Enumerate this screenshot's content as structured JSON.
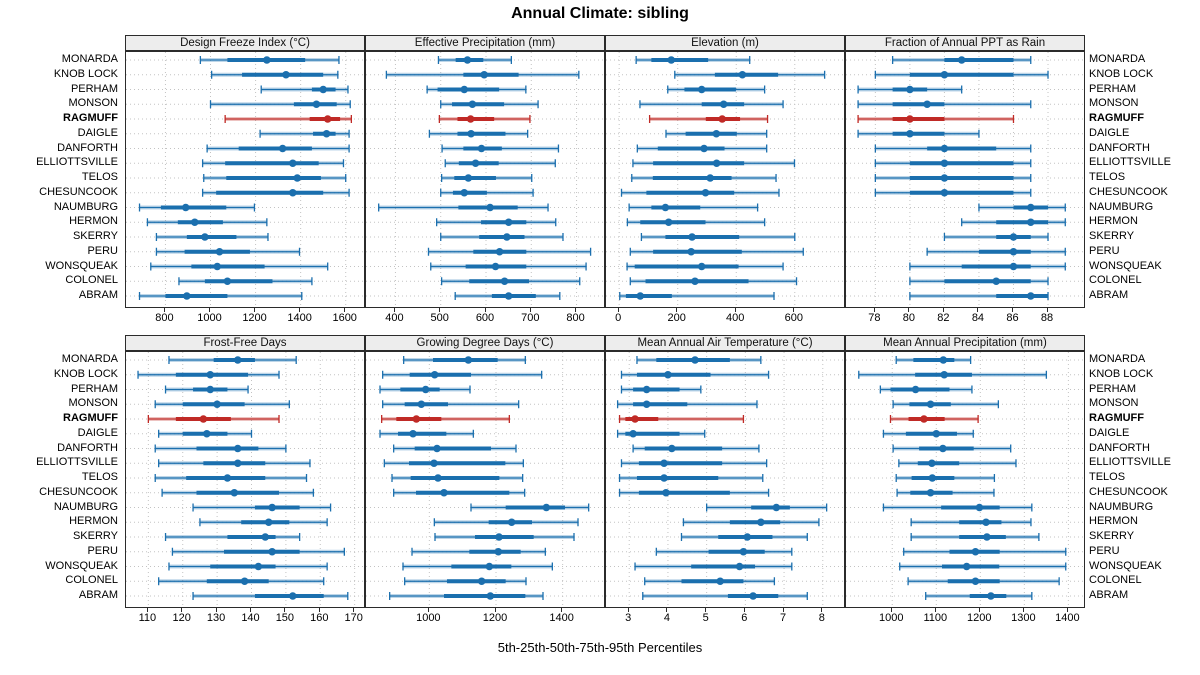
{
  "chart_data": {
    "type": "dotplot-percentiles",
    "title": "Annual Climate: sibling",
    "footer": "5th-25th-50th-75th-95th Percentiles",
    "percentiles": [
      5,
      25,
      50,
      75,
      95
    ],
    "legend_position": "none",
    "grid": true,
    "sites": [
      "MONARDA",
      "KNOB LOCK",
      "PERHAM",
      "MONSON",
      "RAGMUFF",
      "DAIGLE",
      "DANFORTH",
      "ELLIOTTSVILLE",
      "TELOS",
      "CHESUNCOOK",
      "NAUMBURG",
      "HERMON",
      "SKERRY",
      "PERU",
      "WONSQUEAK",
      "COLONEL",
      "ABRAM"
    ],
    "highlight_site": "RAGMUFF",
    "colors": {
      "series": "#1b6fae",
      "highlight": "#c02a26",
      "grid": "#c3c3c3",
      "header_bg": "#ededed",
      "border": "#2b2b2b"
    },
    "panels": [
      {
        "title": "Design Freeze Index (°C)",
        "row": 0,
        "col": 0,
        "xlim": [
          625,
          1690
        ],
        "ticks": [
          800,
          1000,
          1200,
          1400,
          1600
        ],
        "values": {
          "MONARDA": [
            955,
            1075,
            1250,
            1420,
            1570
          ],
          "KNOB LOCK": [
            1005,
            1140,
            1335,
            1500,
            1565
          ],
          "PERHAM": [
            1225,
            1450,
            1500,
            1555,
            1610
          ],
          "MONSON": [
            1000,
            1370,
            1470,
            1560,
            1620
          ],
          "RAGMUFF": [
            1065,
            1440,
            1520,
            1575,
            1625
          ],
          "DAIGLE": [
            1220,
            1455,
            1515,
            1555,
            1615
          ],
          "DANFORTH": [
            985,
            1125,
            1320,
            1450,
            1615
          ],
          "ELLIOTTSVILLE": [
            965,
            1065,
            1365,
            1480,
            1590
          ],
          "TELOS": [
            970,
            1070,
            1385,
            1490,
            1600
          ],
          "CHESUNCOOK": [
            965,
            1025,
            1365,
            1500,
            1615
          ],
          "NAUMBURG": [
            685,
            780,
            890,
            1070,
            1195
          ],
          "HERMON": [
            720,
            855,
            930,
            1055,
            1250
          ],
          "SKERRY": [
            760,
            895,
            975,
            1115,
            1255
          ],
          "PERU": [
            760,
            885,
            1040,
            1175,
            1395
          ],
          "WONSQUEAK": [
            735,
            915,
            1030,
            1240,
            1520
          ],
          "COLONEL": [
            860,
            975,
            1075,
            1275,
            1450
          ],
          "ABRAM": [
            685,
            800,
            895,
            1075,
            1405
          ]
        }
      },
      {
        "title": "Effective Precipitation (mm)",
        "row": 0,
        "col": 1,
        "xlim": [
          335,
          865
        ],
        "ticks": [
          400,
          500,
          600,
          700,
          800
        ],
        "values": {
          "MONARDA": [
            495,
            533,
            559,
            594,
            656
          ],
          "KNOB LOCK": [
            380,
            550,
            596,
            672,
            805
          ],
          "PERHAM": [
            470,
            493,
            552,
            629,
            688
          ],
          "MONSON": [
            500,
            525,
            570,
            640,
            715
          ],
          "RAGMUFF": [
            497,
            537,
            566,
            618,
            697
          ],
          "DAIGLE": [
            475,
            537,
            567,
            643,
            692
          ],
          "DANFORTH": [
            503,
            550,
            590,
            635,
            760
          ],
          "ELLIOTTSVILLE": [
            510,
            540,
            577,
            628,
            753
          ],
          "TELOS": [
            502,
            530,
            561,
            622,
            701
          ],
          "CHESUNCOOK": [
            500,
            527,
            552,
            602,
            704
          ],
          "NAUMBURG": [
            363,
            539,
            609,
            670,
            737
          ],
          "HERMON": [
            491,
            589,
            650,
            689,
            754
          ],
          "SKERRY": [
            500,
            585,
            646,
            685,
            770
          ],
          "PERU": [
            473,
            572,
            630,
            689,
            831
          ],
          "WONSQUEAK": [
            478,
            555,
            621,
            689,
            821
          ],
          "COLONEL": [
            502,
            563,
            641,
            695,
            807
          ],
          "ABRAM": [
            532,
            613,
            650,
            710,
            763
          ]
        }
      },
      {
        "title": "Elevation (m)",
        "row": 0,
        "col": 2,
        "xlim": [
          -45,
          775
        ],
        "ticks": [
          0,
          200,
          400,
          600
        ],
        "values": {
          "MONARDA": [
            58,
            110,
            178,
            304,
            446
          ],
          "KNOB LOCK": [
            190,
            327,
            421,
            543,
            702
          ],
          "PERHAM": [
            166,
            223,
            282,
            399,
            497
          ],
          "MONSON": [
            71,
            282,
            357,
            427,
            560
          ],
          "RAGMUFF": [
            104,
            296,
            352,
            413,
            507
          ],
          "DAIGLE": [
            160,
            227,
            332,
            402,
            504
          ],
          "DANFORTH": [
            62,
            132,
            290,
            360,
            504
          ],
          "ELLIOTTSVILLE": [
            47,
            116,
            333,
            427,
            599
          ],
          "TELOS": [
            43,
            115,
            311,
            384,
            536
          ],
          "CHESUNCOOK": [
            8,
            93,
            295,
            393,
            546
          ],
          "NAUMBURG": [
            34,
            110,
            158,
            277,
            473
          ],
          "HERMON": [
            28,
            72,
            169,
            295,
            497
          ],
          "SKERRY": [
            76,
            158,
            249,
            410,
            600
          ],
          "PERU": [
            38,
            116,
            246,
            419,
            629
          ],
          "WONSQUEAK": [
            27,
            53,
            282,
            408,
            560
          ],
          "COLONEL": [
            38,
            90,
            259,
            442,
            606
          ],
          "ABRAM": [
            2,
            23,
            72,
            180,
            529
          ]
        }
      },
      {
        "title": "Fraction of Annual PPT as Rain",
        "row": 0,
        "col": 3,
        "xlim": [
          76.3,
          90.2
        ],
        "ticks": [
          78,
          80,
          82,
          84,
          86,
          88
        ],
        "values": {
          "MONARDA": [
            79,
            82,
            83,
            86,
            87
          ],
          "KNOB LOCK": [
            78,
            80,
            82,
            86,
            88
          ],
          "PERHAM": [
            77,
            79,
            80,
            81,
            83
          ],
          "MONSON": [
            77,
            79,
            81,
            82,
            87
          ],
          "RAGMUFF": [
            77,
            79,
            80,
            82,
            86
          ],
          "DAIGLE": [
            77,
            79,
            80,
            82,
            84
          ],
          "DANFORTH": [
            78,
            81,
            82,
            85,
            87
          ],
          "ELLIOTTSVILLE": [
            78,
            80,
            82,
            86,
            87
          ],
          "TELOS": [
            78,
            80,
            82,
            86,
            87
          ],
          "CHESUNCOOK": [
            78,
            80,
            82,
            86,
            87
          ],
          "NAUMBURG": [
            84,
            86,
            87,
            88,
            89
          ],
          "HERMON": [
            83,
            85,
            87,
            88,
            89
          ],
          "SKERRY": [
            82,
            85,
            86,
            87,
            88
          ],
          "PERU": [
            81,
            84,
            86,
            87,
            89
          ],
          "WONSQUEAK": [
            80,
            83,
            86,
            87,
            89
          ],
          "COLONEL": [
            80,
            82,
            85,
            87,
            88
          ],
          "ABRAM": [
            80,
            85,
            87,
            88,
            88
          ]
        }
      },
      {
        "title": "Frost-Free Days",
        "row": 1,
        "col": 0,
        "xlim": [
          103.5,
          173.3
        ],
        "ticks": [
          110,
          120,
          130,
          140,
          150,
          160,
          170
        ],
        "values": {
          "MONARDA": [
            116,
            129,
            136,
            141,
            153
          ],
          "KNOB LOCK": [
            107,
            118,
            128,
            139,
            148
          ],
          "PERHAM": [
            115,
            123,
            128,
            133,
            139
          ],
          "MONSON": [
            112,
            120,
            130,
            138,
            151
          ],
          "RAGMUFF": [
            110,
            118,
            126,
            134,
            148
          ],
          "DAIGLE": [
            113,
            120,
            127,
            133,
            140
          ],
          "DANFORTH": [
            112,
            124,
            136,
            142,
            150
          ],
          "ELLIOTTSVILLE": [
            113,
            126,
            136,
            144,
            157
          ],
          "TELOS": [
            112,
            121,
            133,
            144,
            156
          ],
          "CHESUNCOOK": [
            114,
            124,
            135,
            148,
            158
          ],
          "NAUMBURG": [
            123,
            141,
            146,
            154,
            163
          ],
          "HERMON": [
            125,
            137,
            145,
            151,
            162
          ],
          "SKERRY": [
            115,
            133,
            144,
            147,
            154
          ],
          "PERU": [
            117,
            132,
            146,
            154,
            167
          ],
          "WONSQUEAK": [
            116,
            128,
            142,
            147,
            162
          ],
          "COLONEL": [
            113,
            127,
            138,
            145,
            161
          ],
          "ABRAM": [
            123,
            141,
            152,
            161,
            168
          ]
        }
      },
      {
        "title": "Growing Degree Days (°C)",
        "row": 1,
        "col": 1,
        "xlim": [
          810,
          1530
        ],
        "ticks": [
          1000,
          1200,
          1400
        ],
        "values": {
          "MONARDA": [
            923,
            1011,
            1117,
            1205,
            1288
          ],
          "KNOB LOCK": [
            860,
            941,
            1016,
            1125,
            1337
          ],
          "PERHAM": [
            852,
            913,
            989,
            1031,
            1122
          ],
          "MONSON": [
            860,
            926,
            976,
            1056,
            1268
          ],
          "RAGMUFF": [
            857,
            901,
            961,
            1036,
            1240
          ],
          "DAIGLE": [
            852,
            906,
            951,
            1051,
            1132
          ],
          "DANFORTH": [
            893,
            956,
            1023,
            1185,
            1260
          ],
          "ELLIOTTSVILLE": [
            865,
            939,
            1014,
            1228,
            1282
          ],
          "TELOS": [
            888,
            944,
            1026,
            1210,
            1280
          ],
          "CHESUNCOOK": [
            893,
            960,
            1044,
            1240,
            1286
          ],
          "NAUMBURG": [
            1125,
            1229,
            1351,
            1407,
            1478
          ],
          "HERMON": [
            1015,
            1178,
            1247,
            1308,
            1446
          ],
          "SKERRY": [
            1017,
            1137,
            1209,
            1313,
            1434
          ],
          "PERU": [
            948,
            1120,
            1207,
            1274,
            1348
          ],
          "WONSQUEAK": [
            921,
            1066,
            1180,
            1246,
            1369
          ],
          "COLONEL": [
            926,
            1053,
            1157,
            1229,
            1290
          ],
          "ABRAM": [
            881,
            1044,
            1183,
            1288,
            1341
          ]
        }
      },
      {
        "title": "Mean Annual Air Temperature (°C)",
        "row": 1,
        "col": 2,
        "xlim": [
          2.4,
          8.6
        ],
        "ticks": [
          3,
          4,
          5,
          6,
          7,
          8
        ],
        "values": {
          "MONARDA": [
            3.2,
            3.7,
            4.7,
            5.6,
            6.4
          ],
          "KNOB LOCK": [
            2.8,
            3.2,
            4.0,
            5.1,
            6.6
          ],
          "PERHAM": [
            2.8,
            3.1,
            3.45,
            4.3,
            4.85
          ],
          "MONSON": [
            2.7,
            3.1,
            3.45,
            4.5,
            6.3
          ],
          "RAGMUFF": [
            2.75,
            2.9,
            3.15,
            3.75,
            5.95
          ],
          "DAIGLE": [
            2.7,
            2.9,
            3.1,
            4.3,
            4.95
          ],
          "DANFORTH": [
            3.1,
            3.4,
            4.1,
            5.4,
            6.35
          ],
          "ELLIOTTSVILLE": [
            2.8,
            3.25,
            3.9,
            5.4,
            6.55
          ],
          "TELOS": [
            2.75,
            3.2,
            3.9,
            5.3,
            6.45
          ],
          "CHESUNCOOK": [
            2.75,
            3.25,
            3.95,
            5.6,
            6.6
          ],
          "NAUMBURG": [
            5.0,
            6.15,
            6.8,
            7.15,
            8.1
          ],
          "HERMON": [
            4.4,
            5.6,
            6.4,
            6.9,
            7.9
          ],
          "SKERRY": [
            4.35,
            5.3,
            6.05,
            6.7,
            7.6
          ],
          "PERU": [
            3.7,
            5.05,
            5.95,
            6.5,
            7.2
          ],
          "WONSQUEAK": [
            3.15,
            4.6,
            5.85,
            6.25,
            7.2
          ],
          "COLONEL": [
            3.4,
            4.35,
            5.35,
            5.95,
            6.75
          ],
          "ABRAM": [
            3.35,
            5.55,
            6.2,
            6.85,
            7.6
          ]
        }
      },
      {
        "title": "Mean Annual Precipitation (mm)",
        "row": 1,
        "col": 3,
        "xlim": [
          895,
          1440
        ],
        "ticks": [
          1000,
          1100,
          1200,
          1300,
          1400
        ],
        "values": {
          "MONARDA": [
            1009,
            1048,
            1116,
            1141,
            1178
          ],
          "KNOB LOCK": [
            924,
            1052,
            1118,
            1181,
            1350
          ],
          "PERHAM": [
            973,
            996,
            1053,
            1130,
            1181
          ],
          "MONSON": [
            1002,
            1039,
            1087,
            1133,
            1241
          ],
          "RAGMUFF": [
            996,
            1037,
            1072,
            1119,
            1195
          ],
          "DAIGLE": [
            980,
            1031,
            1100,
            1147,
            1184
          ],
          "DANFORTH": [
            1002,
            1061,
            1115,
            1185,
            1269
          ],
          "ELLIOTTSVILLE": [
            1015,
            1058,
            1090,
            1152,
            1281
          ],
          "TELOS": [
            1009,
            1044,
            1091,
            1141,
            1232
          ],
          "CHESUNCOOK": [
            1011,
            1041,
            1087,
            1137,
            1231
          ],
          "NAUMBURG": [
            980,
            1111,
            1198,
            1244,
            1317
          ],
          "HERMON": [
            1043,
            1152,
            1213,
            1248,
            1315
          ],
          "SKERRY": [
            1043,
            1152,
            1215,
            1258,
            1333
          ],
          "PERU": [
            1026,
            1130,
            1189,
            1244,
            1394
          ],
          "WONSQUEAK": [
            1017,
            1113,
            1169,
            1243,
            1394
          ],
          "COLONEL": [
            1036,
            1126,
            1189,
            1244,
            1379
          ],
          "ABRAM": [
            1076,
            1176,
            1224,
            1259,
            1317
          ]
        }
      }
    ]
  }
}
